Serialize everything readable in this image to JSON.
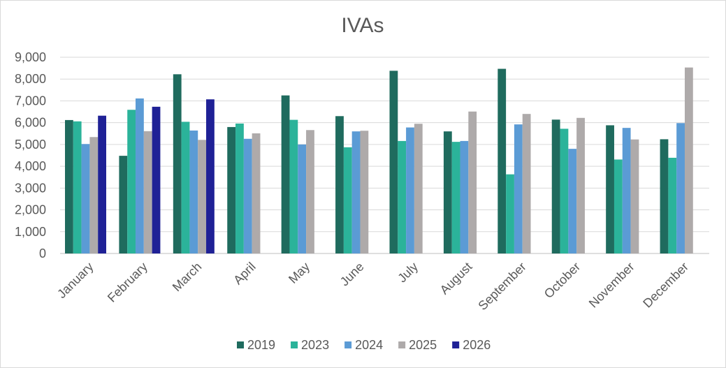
{
  "chart_data": {
    "type": "bar",
    "title": "IVAs",
    "xlabel": "",
    "ylabel": "",
    "ylim": [
      0,
      9000
    ],
    "yticks": [
      "0",
      "1,000",
      "2,000",
      "3,000",
      "4,000",
      "5,000",
      "6,000",
      "7,000",
      "8,000",
      "9,000"
    ],
    "grid": true,
    "legend_position": "bottom",
    "categories": [
      "January",
      "February",
      "March",
      "April",
      "May",
      "June",
      "July",
      "August",
      "September",
      "October",
      "November",
      "December"
    ],
    "series": [
      {
        "name": "2019",
        "color": "#1f6b5e",
        "values": [
          6120,
          4480,
          8220,
          5800,
          7250,
          6300,
          8380,
          5600,
          8470,
          6140,
          5880,
          5240
        ]
      },
      {
        "name": "2023",
        "color": "#2bb39a",
        "values": [
          6060,
          6590,
          6040,
          5960,
          6130,
          4870,
          5160,
          5120,
          3630,
          5720,
          4310,
          4390
        ]
      },
      {
        "name": "2024",
        "color": "#5b9bd5",
        "values": [
          5020,
          7110,
          5640,
          5260,
          5000,
          5600,
          5780,
          5160,
          5920,
          4800,
          5760,
          5980
        ]
      },
      {
        "name": "2025",
        "color": "#aeaaaa",
        "values": [
          5340,
          5610,
          5210,
          5510,
          5660,
          5630,
          5950,
          6510,
          6400,
          6220,
          5230,
          8530
        ]
      },
      {
        "name": "2026",
        "color": "#1f2196",
        "values": [
          6320,
          6730,
          7070,
          null,
          null,
          null,
          null,
          null,
          null,
          null,
          null,
          null
        ]
      }
    ]
  }
}
